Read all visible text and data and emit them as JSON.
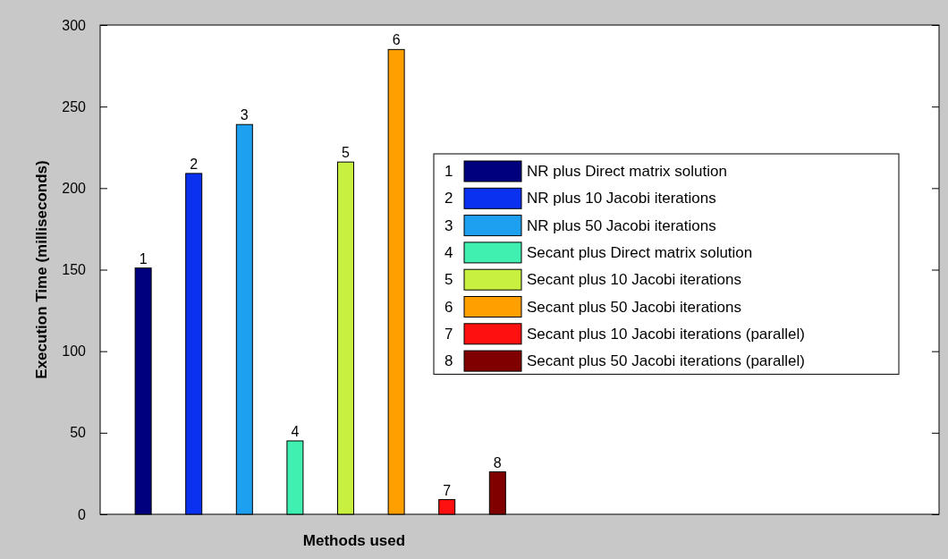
{
  "chart_data": {
    "type": "bar",
    "xlabel": "Methods used",
    "ylabel": "Execution Time (milliseconds)",
    "categories": [
      null,
      null,
      null,
      null,
      null,
      null,
      null,
      null
    ],
    "series": [
      {
        "name": "NR plus Direct matrix solution",
        "color": "#00007f",
        "values": [
          151,
          null,
          null,
          null,
          null,
          null,
          null,
          null
        ]
      },
      {
        "name": "NR plus 10 Jacobi iterations",
        "color": "#0a30f0",
        "values": [
          null,
          209,
          null,
          null,
          null,
          null,
          null,
          null
        ]
      },
      {
        "name": "NR plus 50 Jacobi iterations",
        "color": "#1ea0f0",
        "values": [
          null,
          null,
          239,
          null,
          null,
          null,
          null,
          null
        ]
      },
      {
        "name": "Secant plus Direct matrix solution",
        "color": "#40f0b0",
        "values": [
          null,
          null,
          null,
          45,
          null,
          null,
          null,
          null
        ]
      },
      {
        "name": "Secant plus 10 Jacobi iterations",
        "color": "#c8f040",
        "values": [
          null,
          null,
          null,
          null,
          216,
          null,
          null,
          null
        ]
      },
      {
        "name": "Secant plus 50 Jacobi iterations",
        "color": "#ffa000",
        "values": [
          null,
          null,
          null,
          null,
          null,
          285,
          null,
          null
        ]
      },
      {
        "name": "Secant plus 10 Jacobi iterations (parallel)",
        "color": "#ff1010",
        "values": [
          null,
          null,
          null,
          null,
          null,
          null,
          9,
          null
        ]
      },
      {
        "name": "Secant plus 50 Jacobi iterations (parallel)",
        "color": "#800000",
        "values": [
          null,
          null,
          null,
          null,
          null,
          null,
          null,
          26
        ]
      }
    ],
    "annotations": [
      {
        "text": "1",
        "y": 151
      },
      {
        "text": "2",
        "y": 209
      },
      {
        "text": "3",
        "y": 239
      },
      {
        "text": "4",
        "y": 45
      },
      {
        "text": "5",
        "y": 216
      },
      {
        "text": "6",
        "y": 285
      },
      {
        "text": "7",
        "y": 9
      },
      {
        "text": "8",
        "y": 26
      }
    ],
    "stacked": true,
    "ylim": [
      0,
      300
    ],
    "yticks": [
      0,
      50,
      100,
      150,
      200,
      250,
      300
    ],
    "legend": "right"
  }
}
